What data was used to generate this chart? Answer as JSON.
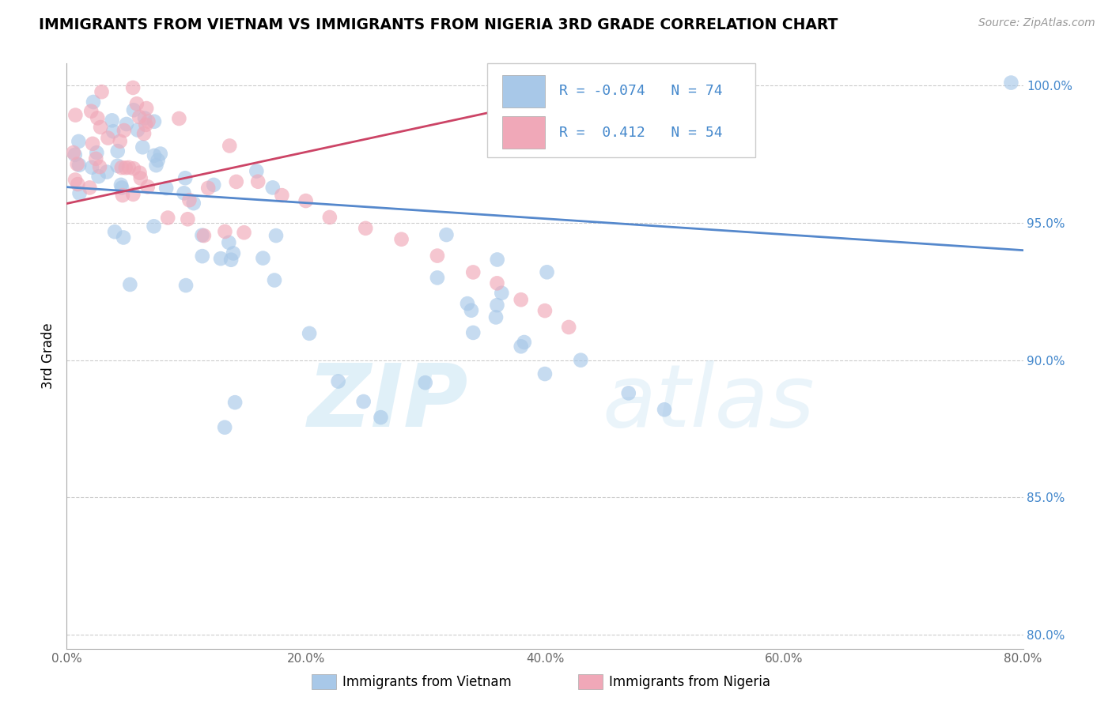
{
  "title": "IMMIGRANTS FROM VIETNAM VS IMMIGRANTS FROM NIGERIA 3RD GRADE CORRELATION CHART",
  "source": "Source: ZipAtlas.com",
  "ylabel": "3rd Grade",
  "xlim": [
    0.0,
    0.8
  ],
  "ylim": [
    0.795,
    1.008
  ],
  "xtick_labels": [
    "0.0%",
    "20.0%",
    "40.0%",
    "60.0%",
    "80.0%"
  ],
  "xtick_vals": [
    0.0,
    0.2,
    0.4,
    0.6,
    0.8
  ],
  "ytick_labels": [
    "80.0%",
    "85.0%",
    "90.0%",
    "95.0%",
    "100.0%"
  ],
  "ytick_vals": [
    0.8,
    0.85,
    0.9,
    0.95,
    1.0
  ],
  "blue_color": "#a8c8e8",
  "pink_color": "#f0a8b8",
  "blue_line_color": "#5588cc",
  "pink_line_color": "#cc4466",
  "R_blue": -0.074,
  "N_blue": 74,
  "R_pink": 0.412,
  "N_pink": 54,
  "legend1_label": "Immigrants from Vietnam",
  "legend2_label": "Immigrants from Nigeria",
  "blue_line_x0": 0.0,
  "blue_line_y0": 0.963,
  "blue_line_x1": 0.8,
  "blue_line_y1": 0.94,
  "pink_line_x0": 0.0,
  "pink_line_y0": 0.957,
  "pink_line_x1": 0.48,
  "pink_line_y1": 1.002
}
